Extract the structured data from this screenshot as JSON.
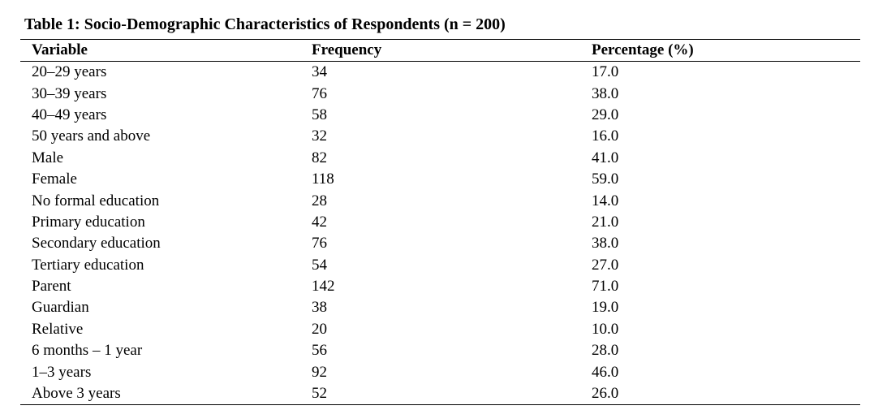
{
  "caption": "Table 1: Socio-Demographic Characteristics of Respondents (n = 200)",
  "headers": {
    "variable": "Variable",
    "frequency": "Frequency",
    "percentage": "Percentage (%)"
  },
  "rows": [
    {
      "variable": "20–29 years",
      "frequency": "34",
      "percentage": "17.0"
    },
    {
      "variable": "30–39 years",
      "frequency": "76",
      "percentage": "38.0"
    },
    {
      "variable": "40–49 years",
      "frequency": "58",
      "percentage": "29.0"
    },
    {
      "variable": "50 years and above",
      "frequency": "32",
      "percentage": "16.0"
    },
    {
      "variable": "Male",
      "frequency": "82",
      "percentage": "41.0"
    },
    {
      "variable": "Female",
      "frequency": "118",
      "percentage": "59.0"
    },
    {
      "variable": "No formal education",
      "frequency": "28",
      "percentage": "14.0"
    },
    {
      "variable": "Primary education",
      "frequency": "42",
      "percentage": "21.0"
    },
    {
      "variable": "Secondary education",
      "frequency": "76",
      "percentage": "38.0"
    },
    {
      "variable": "Tertiary education",
      "frequency": "54",
      "percentage": "27.0"
    },
    {
      "variable": "Parent",
      "frequency": "142",
      "percentage": "71.0"
    },
    {
      "variable": "Guardian",
      "frequency": "38",
      "percentage": "19.0"
    },
    {
      "variable": "Relative",
      "frequency": "20",
      "percentage": "10.0"
    },
    {
      "variable": "6 months – 1 year",
      "frequency": "56",
      "percentage": "28.0"
    },
    {
      "variable": "1–3 years",
      "frequency": "92",
      "percentage": "46.0"
    },
    {
      "variable": "Above 3 years",
      "frequency": "52",
      "percentage": "26.0"
    }
  ]
}
